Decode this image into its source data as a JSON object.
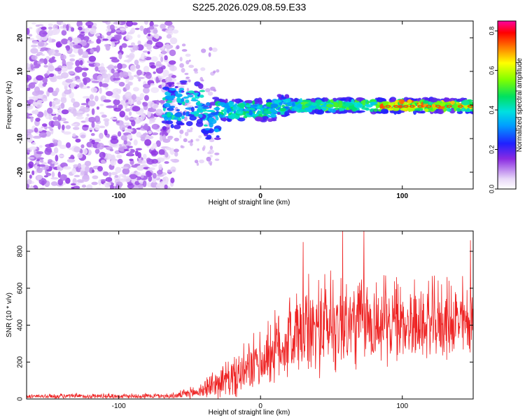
{
  "title": "S225.2026.029.08.59.E33",
  "chart_data": [
    {
      "type": "heatmap",
      "xlabel": "Height of straight line (km)",
      "ylabel": "Frequency (Hz)",
      "xlim": [
        -165,
        150
      ],
      "ylim": [
        -25,
        25
      ],
      "x_ticks": [
        -100,
        0,
        100
      ],
      "y_ticks": [
        -20,
        -10,
        0,
        10,
        20
      ],
      "colorbar": {
        "label": "Normalized spectral amplitude",
        "range": [
          0,
          0.85
        ],
        "ticks": [
          0.0,
          0.2,
          0.4,
          0.6,
          0.8
        ]
      },
      "description_points": [
        {
          "x": -150,
          "y": 15,
          "v": 0.12
        },
        {
          "x": -60,
          "y": 0,
          "v": 0.25
        },
        {
          "x": -40,
          "y": -5,
          "v": 0.3
        },
        {
          "x": 0,
          "y": -2,
          "v": 0.35
        },
        {
          "x": 50,
          "y": 0,
          "v": 0.45
        },
        {
          "x": 100,
          "y": -0.5,
          "v": 0.75
        },
        {
          "x": 130,
          "y": 0,
          "v": 0.8
        }
      ]
    },
    {
      "type": "line",
      "xlabel": "Height of straight line (km)",
      "ylabel": "SNR (10 * v/v)",
      "xlim": [
        -165,
        150
      ],
      "ylim": [
        0,
        910
      ],
      "x_ticks": [
        -100,
        0,
        100
      ],
      "y_ticks": [
        0,
        200,
        400,
        600,
        800
      ],
      "series": [
        {
          "name": "SNR",
          "color": "#ee2222",
          "envelope": [
            {
              "x": -165,
              "base": 10,
              "amp": 20
            },
            {
              "x": -60,
              "base": 12,
              "amp": 25
            },
            {
              "x": -45,
              "base": 25,
              "amp": 60
            },
            {
              "x": -30,
              "base": 60,
              "amp": 140
            },
            {
              "x": -15,
              "base": 80,
              "amp": 200
            },
            {
              "x": 0,
              "base": 150,
              "amp": 260
            },
            {
              "x": 20,
              "base": 250,
              "amp": 380
            },
            {
              "x": 50,
              "base": 320,
              "amp": 480
            },
            {
              "x": 80,
              "base": 330,
              "amp": 400
            },
            {
              "x": 110,
              "base": 340,
              "amp": 330
            },
            {
              "x": 150,
              "base": 350,
              "amp": 360
            }
          ],
          "peaks": [
            {
              "x": 30,
              "y": 850
            },
            {
              "x": 58,
              "y": 910
            },
            {
              "x": 73,
              "y": 910
            },
            {
              "x": 148,
              "y": 860
            }
          ]
        }
      ]
    }
  ]
}
